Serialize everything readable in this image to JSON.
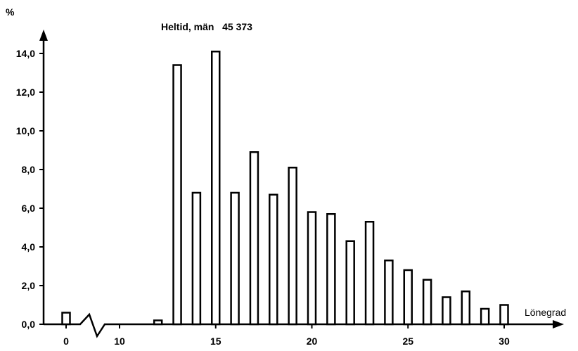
{
  "chart_data": {
    "type": "bar",
    "title": "Heltid, män   45 373",
    "ylabel": "%",
    "xlabel": "Lönegrad",
    "ylim": [
      0,
      14.5
    ],
    "y_ticks": [
      "0,0",
      "2,0",
      "4,0",
      "6,0",
      "8,0",
      "10,0",
      "12,0",
      "14,0"
    ],
    "y_tick_values": [
      0,
      2,
      4,
      6,
      8,
      10,
      12,
      14
    ],
    "x_ticks": [
      "0",
      "10",
      "15",
      "20",
      "25",
      "30"
    ],
    "x_tick_values": [
      0,
      10,
      15,
      20,
      25,
      30
    ],
    "axis_break": "between 0 and 10",
    "categories": [
      0,
      12,
      13,
      14,
      15,
      16,
      17,
      18,
      19,
      20,
      21,
      22,
      23,
      24,
      25,
      26,
      27,
      28,
      29,
      30
    ],
    "values": [
      0.6,
      0.2,
      13.4,
      6.8,
      14.1,
      6.8,
      8.9,
      6.7,
      8.1,
      5.8,
      5.7,
      4.3,
      5.3,
      3.3,
      2.8,
      2.3,
      1.4,
      1.7,
      0.8,
      1.0
    ],
    "grid": false,
    "legend": "none"
  },
  "colors": {
    "bar_fill": "#ffffff",
    "bar_stroke": "#000000",
    "axis": "#000000"
  }
}
